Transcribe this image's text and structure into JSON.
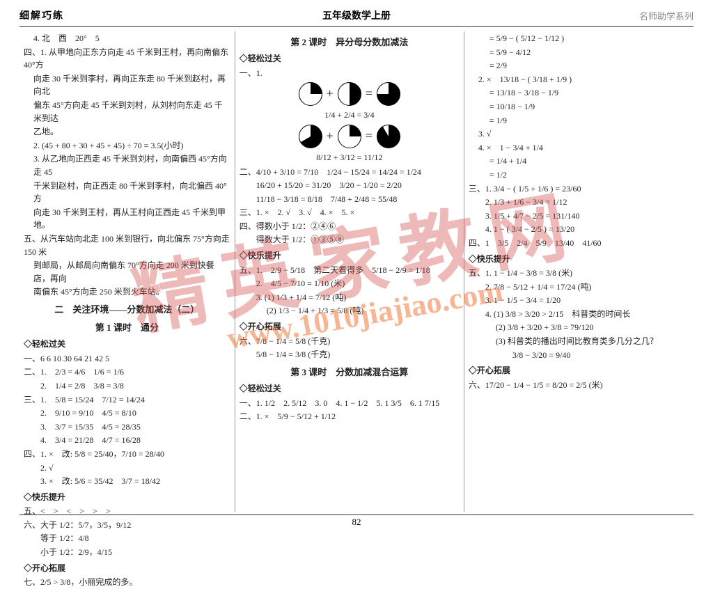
{
  "header": {
    "left": "细解巧练",
    "center": "五年级数学上册",
    "right": "名师助学系列"
  },
  "pageNumber": "82",
  "col1": {
    "l1": "4. 北　西　20°　5",
    "l2": "四、1. 从甲地向正东方向走 45 千米到王村，再向南偏东 40°方",
    "l2b": "向走 30 千米到李村，再向正东走 80 千米到赵村，再向北",
    "l2c": "偏东 45°方向走 45 千米到刘村，从刘村向东走 45 千米到达",
    "l2d": "乙地。",
    "l3": "2. (45 + 80 + 30 + 45 + 45) ÷ 70 = 3.5(小时)",
    "l4": "3. 从乙地向正西走 45 千米到刘村，向南偏西 45°方向走 45",
    "l4b": "千米到赵村，向正西走 80 千米到李村，向北偏西 40°方",
    "l4c": "向走 30 千米到王村，再从王村向正西走 45 千米到甲地。",
    "l5": "五、从汽车站向北走 100 米到银行，向北偏东 75°方向走 150 米",
    "l5b": "到邮局，从邮局向南偏东 70°方向走 200 米到快餐店，再向",
    "l5c": "南偏东 45°方向走 250 米到火车站。",
    "sec": "二　关注环境——分数加减法（二）",
    "time1": "第 1 课时　通分",
    "easy": "◇轻松过关",
    "el1": "一、6  6  10  30  64  21  42  5",
    "el2": "二、1.　2/3 = 4/6　1/6 = 1/6",
    "el3": "　　2.　1/4 = 2/8　3/8 = 3/8",
    "el4": "三、1.　5/8 = 15/24　7/12 = 14/24",
    "el5": "　　2.　9/10 = 9/10　4/5 = 8/10",
    "el6": "　　3.　3/7 = 15/35　4/5 = 28/35",
    "el7": "　　4.　3/4 = 21/28　4/7 = 16/28",
    "el8": "四、1. ×　改: 5/8 = 25/40，7/10 = 28/40",
    "el9": "　　2. √",
    "el10": "　　3. ×　改: 5/6 = 35/42　3/7 = 18/42",
    "happy": "◇快乐提升",
    "hl1": "五、<　>　<　>　>　>",
    "hl2": "六、大于 1/2：5/7，3/5，9/12",
    "hl3": "　　等于 1/2：4/8",
    "hl4": "　　小于 1/2：2/9，4/15",
    "open": "◇开心拓展",
    "ol1": "七、2/5 > 3/8，小丽完成的多。"
  },
  "col2": {
    "time2": "第 2 课时　异分母分数加减法",
    "easy": "◇轻松过关",
    "fline": "一、1.",
    "fracEq": "1/4 + 2/4 = 3/4",
    "fracEq2": "8/12 + 3/12 = 11/12",
    "l1": "二、4/10 + 3/10 = 7/10　1/24 − 15/24 = 14/24 = 1/24",
    "l2": "　　16/20 + 15/20 = 31/20　3/20 − 1/20 = 2/20",
    "l3": "　　11/18 − 3/18 = 8/18　7/48 + 2/48 = 55/48",
    "l4": "三、1. ×　2. √　3. √　4. ×　5. ×",
    "l5": "四、得数小于 1/2：②④⑥",
    "l6": "　　得数大于 1/2：①③⑤⑧",
    "happy": "◇快乐提升",
    "h1": "五、1.　2/9 − 5/18　第二天看得多　5/18 − 2/9 = 1/18",
    "h2": "　　2.　4/5 − 7/10 = 1/10 (米)",
    "h3": "　　3. (1) 1/3 + 1/4 = 7/12 (吨)",
    "h4": "　　　 (2) 1/3 − 1/4 + 1/3 = 5/8 (吨)",
    "open": "◇开心拓展",
    "o1": "六、7/8 − 1/4 = 5/8 (千克)",
    "o2": "　　5/8 − 1/4 = 3/8 (千克)",
    "time3": "第 3 课时　分数加减混合运算",
    "easy2": "◇轻松过关",
    "e1": "一、1. 1/2　2. 5/12　3. 0　4. 1 − 1/2　5. 1 3/5　6. 1 7/15",
    "e2": "二、1. ×　5/9 − 5/12 + 1/12"
  },
  "col3": {
    "l1": "= 5/9 − ( 5/12 − 1/12 )",
    "l2": "= 5/9 − 4/12",
    "l3": "= 2/9",
    "l4": "2. ×　13/18 − ( 3/18 + 1/9 )",
    "l5": "= 13/18 − 3/18 − 1/9",
    "l6": "= 10/18 − 1/9",
    "l7": "= 1/9",
    "l8": "3. √",
    "l9": "4. ×　1 − 3/4 + 1/4",
    "l10": "= 1/4 + 1/4",
    "l11": "= 1/2",
    "l12": "三、1. 3/4 − ( 1/5 + 1/6 ) = 23/60",
    "l13": "　　2. 1/3 + 1/6 − 3/4 = 1/12",
    "l14": "　　3. 1/5 + 4/7 − 2/5 = 131/140",
    "l15": "　　4. 1 − ( 3/4 − 2/5 ) = 13/20",
    "l16": "四、1　3/5　2/4　5/9　13/40　41/60",
    "happy": "◇快乐提升",
    "h1": "五、1. 1 − 1/4 − 3/8 = 3/8 (米)",
    "h2": "　　2. 7/8 − 5/12 + 1/4 = 17/24 (吨)",
    "h3": "　　3. 1 − 1/5 − 3/4 = 1/20",
    "h4": "　　4. (1) 3/8 > 3/20 > 2/15　科普类的时间长",
    "h5": "　　　 (2) 3/8 + 3/20 + 3/8 = 79/120",
    "h6": "　　　 (3) 科普类的播出时间比教育类多几分之几？",
    "h7": "　　　　　 3/8 − 3/20 = 9/40",
    "open": "◇开心拓展",
    "o1": "六、17/20 − 1/4 − 1/5 = 8/20 = 2/5 (米)"
  },
  "watermark": {
    "cn": "精英家教网",
    "url": "www.1010jiajiao.com"
  },
  "colors": {
    "text": "#222",
    "wmRed": "rgba(210,70,70,0.38)",
    "wmOrange": "rgba(240,120,60,0.55)"
  }
}
